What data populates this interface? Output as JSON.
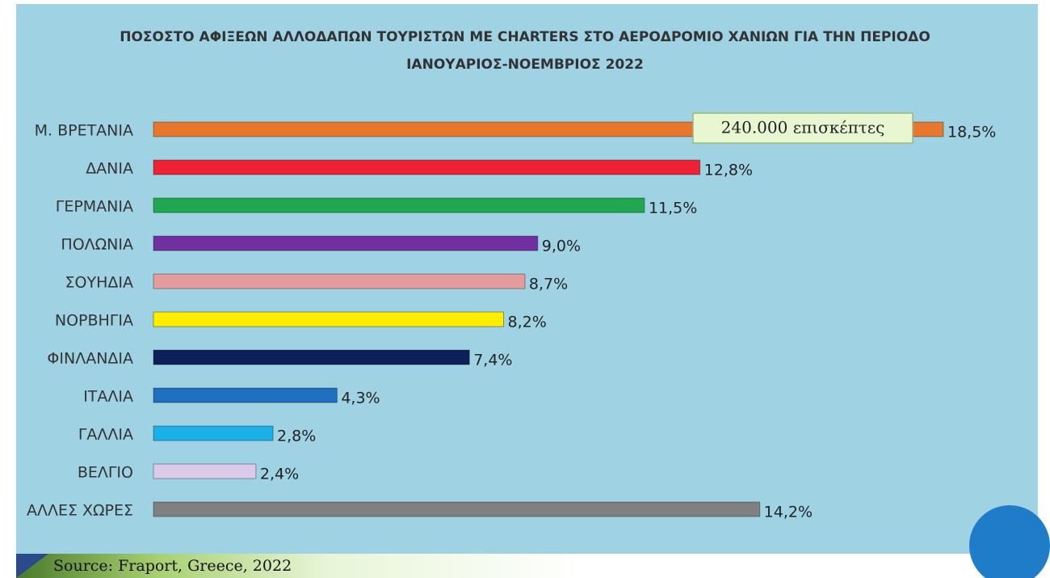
{
  "chart_data": {
    "type": "bar",
    "orientation": "horizontal",
    "title": [
      "ΠΟΣΟΣΤΟ ΑΦΙΞΕΩΝ ΑΛΛΟΔΑΠΩΝ ΤΟΥΡΙΣΤΩΝ ΜΕ CHARTERS ΣΤΟ ΑΕΡΟΔΡΟΜΙΟ ΧΑΝΙΩΝ ΓΙΑ ΤΗΝ ΠΕΡΙΟΔΟ",
      "ΙΑΝΟΥΑΡΙΟΣ-ΝΟΕΜΒΡΙΟΣ 2022"
    ],
    "categories": [
      "Μ. ΒΡΕΤΑΝΙΑ",
      "ΔΑΝΙΑ",
      "ΓΕΡΜΑΝΙΑ",
      "ΠΟΛΩΝΙΑ",
      "ΣΟΥΗΔΙΑ",
      "ΝΟΡΒΗΓΙΑ",
      "ΦΙΝΛΑΝΔΙΑ",
      "ΙΤΑΛΙΑ",
      "ΓΑΛΛΙΑ",
      "ΒΕΛΓΙΟ",
      "ΑΛΛΕΣ ΧΩΡΕΣ"
    ],
    "values": [
      18.5,
      12.8,
      11.5,
      9.0,
      8.7,
      8.2,
      7.4,
      4.3,
      2.8,
      2.4,
      14.2
    ],
    "value_labels": [
      "18,5%",
      "12,8%",
      "11,5%",
      "9,0%",
      "8,7%",
      "8,2%",
      "7,4%",
      "4,3%",
      "2,8%",
      "2,4%",
      "14,2%"
    ],
    "colors": [
      "#e8772e",
      "#ee2233",
      "#1fa84f",
      "#7030a0",
      "#e59c9c",
      "#ffee00",
      "#0f1f5a",
      "#1f6fbf",
      "#1ab0e8",
      "#dccbe8",
      "#808080"
    ],
    "annotation": "240.000 επισκέπτες",
    "source": "Source: Fraport, Greece, 2022"
  }
}
